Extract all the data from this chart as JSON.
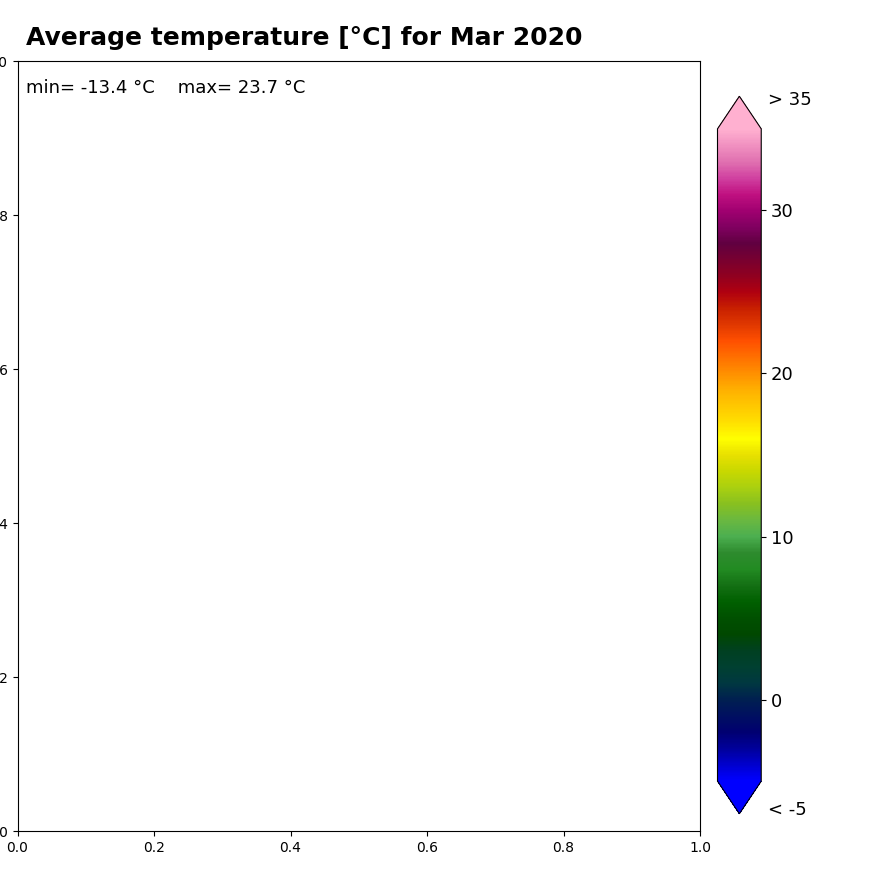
{
  "title": "Average temperature [°C] for Mar 2020",
  "subtitle": "min= -13.4 °C    max= 23.7 °C",
  "colorbar_ticks": [
    -5,
    0,
    10,
    20,
    30,
    35
  ],
  "colorbar_labels": [
    "< -5",
    "0",
    "10",
    "20",
    "30",
    "> 35"
  ],
  "colorbar_tick_positions": [
    -5,
    0,
    10,
    20,
    30,
    35
  ],
  "temp_min": -5,
  "temp_max": 35,
  "colormap_colors": [
    "#0000cd",
    "#0000ff",
    "#1a3a6b",
    "#004080",
    "#006060",
    "#004000",
    "#006400",
    "#228B22",
    "#2e8b2e",
    "#3a9c3a",
    "#4caf50",
    "#7cbc5e",
    "#9acd32",
    "#c8e020",
    "#ffff00",
    "#ffe000",
    "#ffc000",
    "#ffa000",
    "#ff8000",
    "#e05000",
    "#c03000",
    "#a01020",
    "#800040",
    "#c00060",
    "#e060a0",
    "#ff80c0"
  ],
  "background_color": "#ffffff",
  "title_fontsize": 18,
  "subtitle_fontsize": 13,
  "fig_width": 8.75,
  "fig_height": 8.75,
  "extent": [
    -25,
    45,
    27,
    72
  ],
  "map_image_path": null
}
